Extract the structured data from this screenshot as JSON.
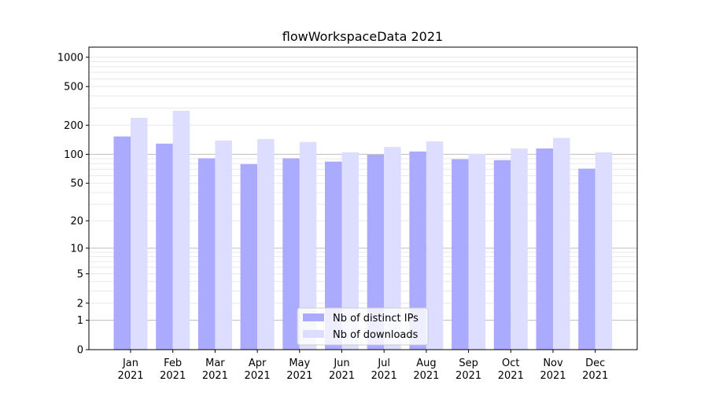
{
  "chart_data": {
    "type": "bar",
    "title": "flowWorkspaceData 2021",
    "xlabel": "",
    "ylabel": "",
    "yscale": "log(1+y)",
    "ylim": [
      0,
      1270
    ],
    "yticks": [
      0,
      1,
      2,
      5,
      10,
      20,
      50,
      100,
      200,
      500,
      1000
    ],
    "grid": true,
    "legend_position": "bottom-center",
    "categories": [
      "Jan\n2021",
      "Feb\n2021",
      "Mar\n2021",
      "Apr\n2021",
      "May\n2021",
      "Jun\n2021",
      "Jul\n2021",
      "Aug\n2021",
      "Sep\n2021",
      "Oct\n2021",
      "Nov\n2021",
      "Dec\n2021"
    ],
    "series": [
      {
        "name": "Nb of distinct IPs",
        "color": "#aaaaff",
        "values": [
          153,
          129,
          91,
          79,
          91,
          84,
          99,
          107,
          89,
          87,
          115,
          71
        ]
      },
      {
        "name": "Nb of downloads",
        "color": "#ddddff",
        "values": [
          238,
          282,
          139,
          144,
          134,
          105,
          119,
          136,
          101,
          115,
          148,
          105
        ]
      }
    ]
  }
}
